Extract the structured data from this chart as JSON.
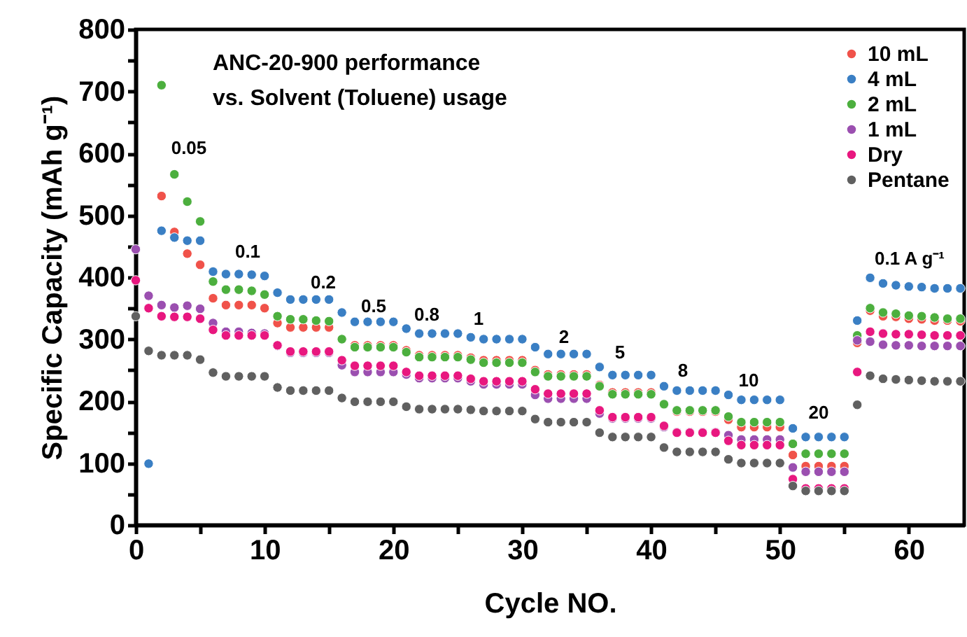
{
  "chart_data": {
    "type": "scatter",
    "title": "ANC-20-900 performance\nvs. Solvent (Toluene) usage",
    "xlabel": "Cycle NO.",
    "ylabel": "Specific Capacity (mAh g⁻¹)",
    "x": [
      0,
      1,
      2,
      3,
      4,
      5,
      6,
      7,
      8,
      9,
      10,
      11,
      12,
      13,
      14,
      15,
      16,
      17,
      18,
      19,
      20,
      21,
      22,
      23,
      24,
      25,
      26,
      27,
      28,
      29,
      30,
      31,
      32,
      33,
      34,
      35,
      36,
      37,
      38,
      39,
      40,
      41,
      42,
      43,
      44,
      45,
      46,
      47,
      48,
      49,
      50,
      51,
      52,
      53,
      54,
      55,
      56,
      57,
      58,
      59,
      60,
      61,
      62,
      63,
      64
    ],
    "series": [
      {
        "name": "10 mL",
        "color": "#f0524a",
        "values": [
          null,
          null,
          531,
          473,
          438,
          420,
          366,
          355,
          355,
          355,
          350,
          326,
          319,
          319,
          319,
          319,
          null,
          290,
          290,
          290,
          290,
          282,
          274,
          274,
          274,
          274,
          270,
          266,
          266,
          266,
          266,
          250,
          243,
          243,
          243,
          243,
          226,
          214,
          214,
          214,
          214,
          null,
          183,
          183,
          183,
          183,
          170,
          158,
          158,
          158,
          158,
          113,
          95,
          95,
          95,
          95,
          294,
          346,
          337,
          336,
          333,
          332,
          330,
          330,
          329
        ]
      },
      {
        "name": "4 mL",
        "color": "#3a7fc4",
        "values": [
          null,
          99,
          475,
          464,
          459,
          459,
          409,
          405,
          405,
          404,
          402,
          375,
          364,
          364,
          364,
          364,
          343,
          328,
          328,
          328,
          328,
          317,
          309,
          309,
          309,
          309,
          303,
          300,
          300,
          300,
          300,
          287,
          276,
          276,
          276,
          276,
          255,
          242,
          242,
          242,
          242,
          224,
          217,
          217,
          217,
          217,
          210,
          202,
          202,
          202,
          202,
          156,
          142,
          142,
          142,
          142,
          330,
          399,
          390,
          387,
          385,
          384,
          382,
          382,
          382
        ]
      },
      {
        "name": "2 mL",
        "color": "#4caf3e",
        "values": [
          null,
          null,
          710,
          566,
          522,
          490,
          393,
          380,
          380,
          378,
          372,
          337,
          332,
          332,
          330,
          329,
          300,
          287,
          287,
          287,
          287,
          279,
          271,
          271,
          271,
          271,
          267,
          262,
          262,
          262,
          262,
          247,
          240,
          240,
          240,
          240,
          224,
          211,
          211,
          211,
          211,
          195,
          185,
          185,
          185,
          185,
          175,
          166,
          166,
          166,
          166,
          131,
          115,
          115,
          115,
          115,
          306,
          350,
          343,
          341,
          338,
          337,
          335,
          333,
          333
        ]
      },
      {
        "name": "1 mL",
        "color": "#9b4fb0",
        "values": [
          445,
          370,
          355,
          351,
          354,
          349,
          326,
          312,
          312,
          310,
          309,
          289,
          278,
          278,
          278,
          278,
          258,
          247,
          247,
          247,
          247,
          243,
          237,
          237,
          237,
          237,
          232,
          227,
          227,
          227,
          227,
          210,
          204,
          204,
          204,
          204,
          180,
          172,
          172,
          172,
          172,
          158,
          150,
          150,
          150,
          150,
          145,
          138,
          138,
          138,
          138,
          93,
          86,
          86,
          86,
          86,
          298,
          296,
          291,
          290,
          290,
          289,
          289,
          289,
          289
        ]
      },
      {
        "name": "Dry",
        "color": "#e8177f",
        "values": [
          395,
          350,
          337,
          336,
          336,
          333,
          315,
          306,
          306,
          306,
          306,
          290,
          280,
          280,
          280,
          280,
          266,
          257,
          257,
          257,
          257,
          247,
          241,
          241,
          241,
          241,
          236,
          232,
          232,
          232,
          232,
          219,
          212,
          212,
          212,
          212,
          185,
          174,
          174,
          174,
          174,
          160,
          149,
          149,
          149,
          149,
          136,
          129,
          129,
          129,
          129,
          74,
          59,
          59,
          59,
          59,
          247,
          312,
          309,
          308,
          308,
          307,
          306,
          306,
          306
        ]
      },
      {
        "name": "Pentane",
        "color": "#606060",
        "values": [
          337,
          281,
          274,
          274,
          274,
          267,
          246,
          240,
          240,
          240,
          240,
          222,
          217,
          217,
          217,
          217,
          205,
          199,
          199,
          199,
          199,
          191,
          187,
          187,
          187,
          187,
          186,
          184,
          184,
          184,
          184,
          171,
          166,
          166,
          166,
          166,
          149,
          142,
          142,
          142,
          142,
          125,
          118,
          118,
          118,
          118,
          106,
          100,
          100,
          100,
          100,
          63,
          55,
          55,
          55,
          55,
          194,
          241,
          236,
          235,
          234,
          233,
          232,
          232,
          232
        ]
      }
    ],
    "annotations": [
      "0.05",
      "0.1",
      "0.2",
      "0.5",
      "0.8",
      "1",
      "2",
      "5",
      "8",
      "10",
      "20",
      "0.1 A g⁻¹"
    ],
    "xlim": [
      0,
      64.3
    ],
    "ylim": [
      0,
      800
    ],
    "xticks": [
      0,
      {
        "value": 5,
        "label": null
      },
      10,
      {
        "value": 15,
        "label": null
      },
      20,
      {
        "value": 25,
        "label": null
      },
      30,
      {
        "value": 35,
        "label": null
      },
      40,
      {
        "value": 45,
        "label": null
      },
      50,
      {
        "value": 55,
        "label": null
      },
      60
    ],
    "yticks": [
      0,
      {
        "value": 50,
        "label": null
      },
      100,
      {
        "value": 150,
        "label": null
      },
      200,
      {
        "value": 250,
        "label": null
      },
      300,
      {
        "value": 350,
        "label": null
      },
      400,
      {
        "value": 450,
        "label": null
      },
      500,
      {
        "value": 550,
        "label": null
      },
      600,
      {
        "value": 650,
        "label": null
      },
      700,
      {
        "value": 750,
        "label": null
      },
      800
    ],
    "legend": "top right",
    "marker": "circle",
    "grid": false
  }
}
